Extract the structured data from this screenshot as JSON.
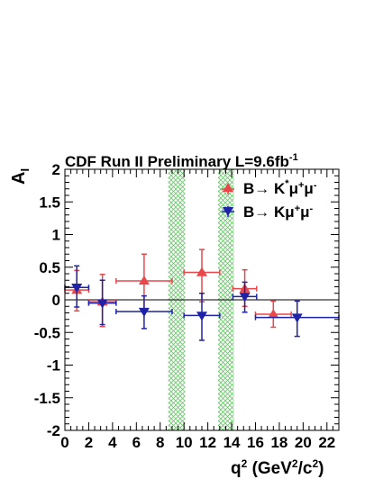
{
  "chart_data": {
    "type": "scatter",
    "title": "CDF Run II Preliminary L=9.6fb",
    "title_superscript": "-1",
    "xlabel": {
      "base": "q",
      "sup1": "2",
      "mid": " (GeV",
      "sup2": "2",
      "mid2": "/c",
      "sup3": "2",
      "end": ")"
    },
    "ylabel": {
      "base": "A",
      "sub": "I"
    },
    "xlim": [
      0,
      23
    ],
    "ylim": [
      -2,
      2
    ],
    "x_ticks": [
      0,
      2,
      4,
      6,
      8,
      10,
      12,
      14,
      16,
      18,
      20,
      22
    ],
    "x_tick_labels": [
      "0",
      "2",
      "4",
      "6",
      "8",
      "10",
      "12",
      "14",
      "16",
      "18",
      "20",
      "22"
    ],
    "y_ticks": [
      -2,
      -1.5,
      -1,
      -0.5,
      0,
      0.5,
      1,
      1.5,
      2
    ],
    "y_tick_labels": [
      "-2",
      "-1.5",
      "-1",
      "-0.5",
      "0",
      "0.5",
      "1",
      "1.5",
      "2"
    ],
    "grid": false,
    "legend_position": "top-right",
    "reference_line_y": 0,
    "excluded_bands": [
      {
        "x0": 8.68,
        "x1": 10.09
      },
      {
        "x0": 12.86,
        "x1": 14.18
      }
    ],
    "series": [
      {
        "name": "B→ K*μ+μ-",
        "legend": {
          "pre": "B",
          "arrow": "→",
          "k": " K",
          "ksup": "*",
          "mu1": "μ",
          "mu1sup": "+",
          "mu2": "μ",
          "mu2sup": "-"
        },
        "color": "#e8474c",
        "marker": "triangle-up",
        "points": [
          {
            "x": 1.0,
            "xerr": 1.0,
            "y": 0.15,
            "ylo": 0.32,
            "yhi": 0.3
          },
          {
            "x": 3.15,
            "xerr": 1.15,
            "y": -0.03,
            "ylo": 0.38,
            "yhi": 0.42
          },
          {
            "x": 6.65,
            "xerr": 2.35,
            "y": 0.29,
            "ylo": 0.43,
            "yhi": 0.41
          },
          {
            "x": 11.5,
            "xerr": 1.5,
            "y": 0.42,
            "ylo": 0.45,
            "yhi": 0.35
          },
          {
            "x": 15.1,
            "xerr": 1.0,
            "y": 0.17,
            "ylo": 0.27,
            "yhi": 0.29
          },
          {
            "x": 17.5,
            "xerr": 1.5,
            "y": -0.22,
            "ylo": 0.2,
            "yhi": 0.2
          }
        ]
      },
      {
        "name": "B→ Kμ+μ-",
        "legend": {
          "pre": "B",
          "arrow": "→",
          "k": " K",
          "ksup": "",
          "mu1": "μ",
          "mu1sup": "+",
          "mu2": "μ",
          "mu2sup": "-"
        },
        "color": "#1f22a6",
        "marker": "triangle-down",
        "points": [
          {
            "x": 1.0,
            "xerr": 1.0,
            "y": 0.19,
            "ylo": 0.3,
            "yhi": 0.33
          },
          {
            "x": 3.15,
            "xerr": 1.15,
            "y": -0.05,
            "ylo": 0.33,
            "yhi": 0.35
          },
          {
            "x": 6.65,
            "xerr": 2.35,
            "y": -0.18,
            "ylo": 0.26,
            "yhi": 0.24
          },
          {
            "x": 11.5,
            "xerr": 1.5,
            "y": -0.24,
            "ylo": 0.38,
            "yhi": 0.34
          },
          {
            "x": 15.1,
            "xerr": 1.0,
            "y": 0.05,
            "ylo": 0.24,
            "yhi": 0.22
          },
          {
            "x": 19.5,
            "xerr": 3.5,
            "y": -0.27,
            "ylo": 0.29,
            "yhi": 0.25
          }
        ]
      }
    ]
  }
}
